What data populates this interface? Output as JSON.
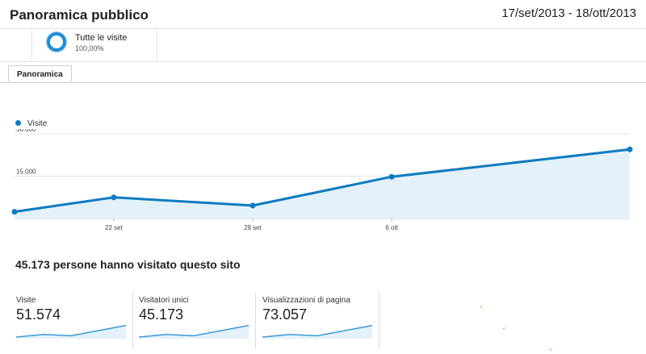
{
  "header": {
    "title": "Panoramica pubblico",
    "date_range": "17/set/2013 - 18/ott/2013"
  },
  "segment": {
    "name": "Tutte le visite",
    "percent": "100,00%",
    "icon": "segment-ring-icon"
  },
  "tabs": [
    {
      "label": "Panoramica",
      "active": true
    }
  ],
  "colors": {
    "series": "#0f7bbf",
    "area": "#e3f1fa",
    "grid": "#e5e5e5"
  },
  "chart_data": {
    "type": "line",
    "series": [
      {
        "name": "Visite",
        "values": [
          2400,
          7500,
          4600,
          14800,
          24500
        ]
      }
    ],
    "x": [
      "2013-09-17",
      "2013-09-22",
      "2013-09-29",
      "2013-10-06",
      "2013-10-18"
    ],
    "x_ticks": [
      "22 set",
      "29 set",
      "6 ott"
    ],
    "y_ticks": [
      "30.000",
      "15.000"
    ],
    "ylim": [
      0,
      30000
    ],
    "grid": true,
    "legend": "top-left"
  },
  "summary": {
    "headline": "45.173 persone hanno visitato questo sito"
  },
  "metrics": [
    {
      "label": "Visite",
      "value": "51.574",
      "trend": [
        10,
        8,
        9,
        5,
        1
      ]
    },
    {
      "label": "Visitatori unici",
      "value": "45.173",
      "trend": [
        10,
        8,
        9,
        5,
        1
      ]
    },
    {
      "label": "Visualizzazioni di pagina",
      "value": "73.057",
      "trend": [
        10,
        8,
        9,
        5,
        1
      ]
    }
  ]
}
